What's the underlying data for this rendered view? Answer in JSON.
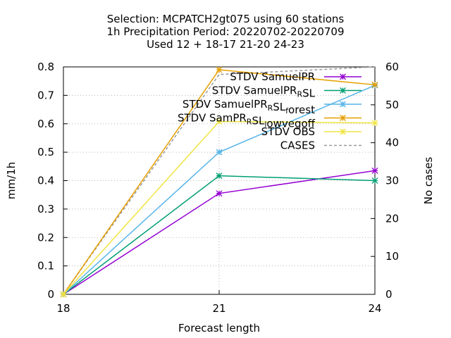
{
  "chart_data": {
    "type": "line",
    "title_lines": [
      "Selection: MCPATCH2gt075 using    60 stations",
      "1h Precipitation   Period: 20220702-20220709",
      "Used  12 + 18-17 21-20 24-23"
    ],
    "xlabel": "Forecast length",
    "ylabel": "mm/1h",
    "y2label": "No cases",
    "x": [
      18,
      21,
      24
    ],
    "xlim": [
      18,
      24
    ],
    "ylim": [
      0,
      0.8
    ],
    "y2lim": [
      0,
      60
    ],
    "xticks": [
      "18",
      "21",
      "24"
    ],
    "yticks": [
      "0",
      "0.1",
      "0.2",
      "0.3",
      "0.4",
      "0.5",
      "0.6",
      "0.7",
      "0.8"
    ],
    "y2ticks": [
      "0",
      "10",
      "20",
      "30",
      "40",
      "50",
      "60"
    ],
    "grid": true,
    "legend_position": "top-right",
    "series": [
      {
        "name": "STDV SamuelPR",
        "name_parts": [
          [
            "STDV SamuelPR",
            ""
          ]
        ],
        "color": "#9400d3",
        "values": [
          0.0,
          0.355,
          0.435
        ],
        "axis": "y1",
        "marker": "x"
      },
      {
        "name": "STDV SamuelPR_RSL",
        "name_parts": [
          [
            "STDV SamuelPR",
            ""
          ],
          [
            "R",
            "sub"
          ],
          [
            "SL",
            ""
          ]
        ],
        "color": "#009e73",
        "values": [
          0.0,
          0.417,
          0.4
        ],
        "axis": "y1",
        "marker": "x"
      },
      {
        "name": "STDV SamuelPR_RSL_forest",
        "name_parts": [
          [
            "STDV SamuelPR",
            ""
          ],
          [
            "R",
            "sub"
          ],
          [
            "SL",
            ""
          ],
          [
            "f",
            "sub"
          ],
          [
            "orest",
            ""
          ]
        ],
        "color": "#56b4e9",
        "values": [
          0.0,
          0.5,
          0.735
        ],
        "axis": "y1",
        "marker": "x"
      },
      {
        "name": "STDV SamPR_RSL_lowvegoff",
        "name_parts": [
          [
            "STDV SamPR",
            ""
          ],
          [
            "R",
            "sub"
          ],
          [
            "SL",
            ""
          ],
          [
            "l",
            "sub"
          ],
          [
            "owvegoff",
            ""
          ]
        ],
        "color": "#e69f00",
        "values": [
          0.0,
          0.79,
          0.737
        ],
        "axis": "y1",
        "marker": "x"
      },
      {
        "name": "STDV OBS",
        "name_parts": [
          [
            "STDV OBS",
            ""
          ]
        ],
        "color": "#f0e442",
        "values": [
          0.0,
          0.608,
          0.603
        ],
        "axis": "y1",
        "marker": "x"
      },
      {
        "name": "CASES",
        "name_parts": [
          [
            "CASES",
            ""
          ]
        ],
        "color": "#999999",
        "values": [
          0,
          58,
          60
        ],
        "axis": "y2",
        "marker": "none",
        "dash": true
      }
    ]
  }
}
